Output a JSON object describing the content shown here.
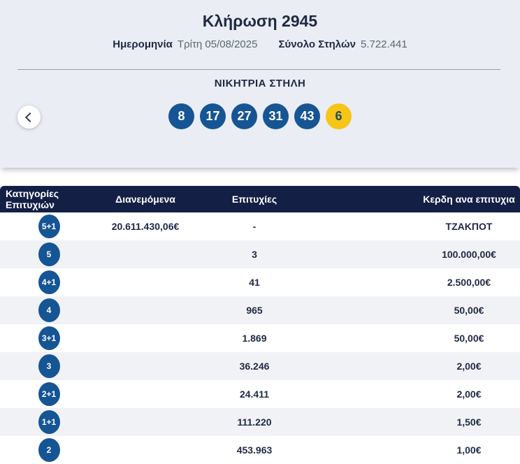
{
  "header": {
    "title": "Κλήρωση 2945",
    "date_label": "Ημερομηνία",
    "date_value": "Τρίτη 05/08/2025",
    "columns_label": "Σύνολο Στηλών",
    "columns_value": "5.722.441"
  },
  "winning": {
    "title": "ΝΙΚΗΤΡΙΑ ΣΤΗΛΗ",
    "numbers": [
      "8",
      "17",
      "27",
      "31",
      "43"
    ],
    "joker": "6"
  },
  "table": {
    "headers": [
      "Κατηγορίες Επιτυχιών",
      "Διανεμόμενα",
      "Επιτυχίες",
      "Κερδη ανα επιτυχια"
    ],
    "rows": [
      {
        "category": "5+1",
        "distributed": "20.611.430,06€",
        "wins": "-",
        "prize": "ΤΖΑΚΠΟΤ"
      },
      {
        "category": "5",
        "distributed": "",
        "wins": "3",
        "prize": "100.000,00€"
      },
      {
        "category": "4+1",
        "distributed": "",
        "wins": "41",
        "prize": "2.500,00€"
      },
      {
        "category": "4",
        "distributed": "",
        "wins": "965",
        "prize": "50,00€"
      },
      {
        "category": "3+1",
        "distributed": "",
        "wins": "1.869",
        "prize": "50,00€"
      },
      {
        "category": "3",
        "distributed": "",
        "wins": "36.246",
        "prize": "2,00€"
      },
      {
        "category": "2+1",
        "distributed": "",
        "wins": "24.411",
        "prize": "2,00€"
      },
      {
        "category": "1+1",
        "distributed": "",
        "wins": "111.220",
        "prize": "1,50€"
      },
      {
        "category": "2",
        "distributed": "",
        "wins": "453.963",
        "prize": "1,00€"
      }
    ]
  },
  "colors": {
    "panel_bg": "#eaedf3",
    "text_navy": "#1e2a44",
    "text_gray": "#5d6673",
    "ball_blue": "#165594",
    "ball_yellow": "#f6c516",
    "joker_text": "#1a4f63",
    "header_navy": "#131f45",
    "row_alt": "#f1f2f6"
  }
}
